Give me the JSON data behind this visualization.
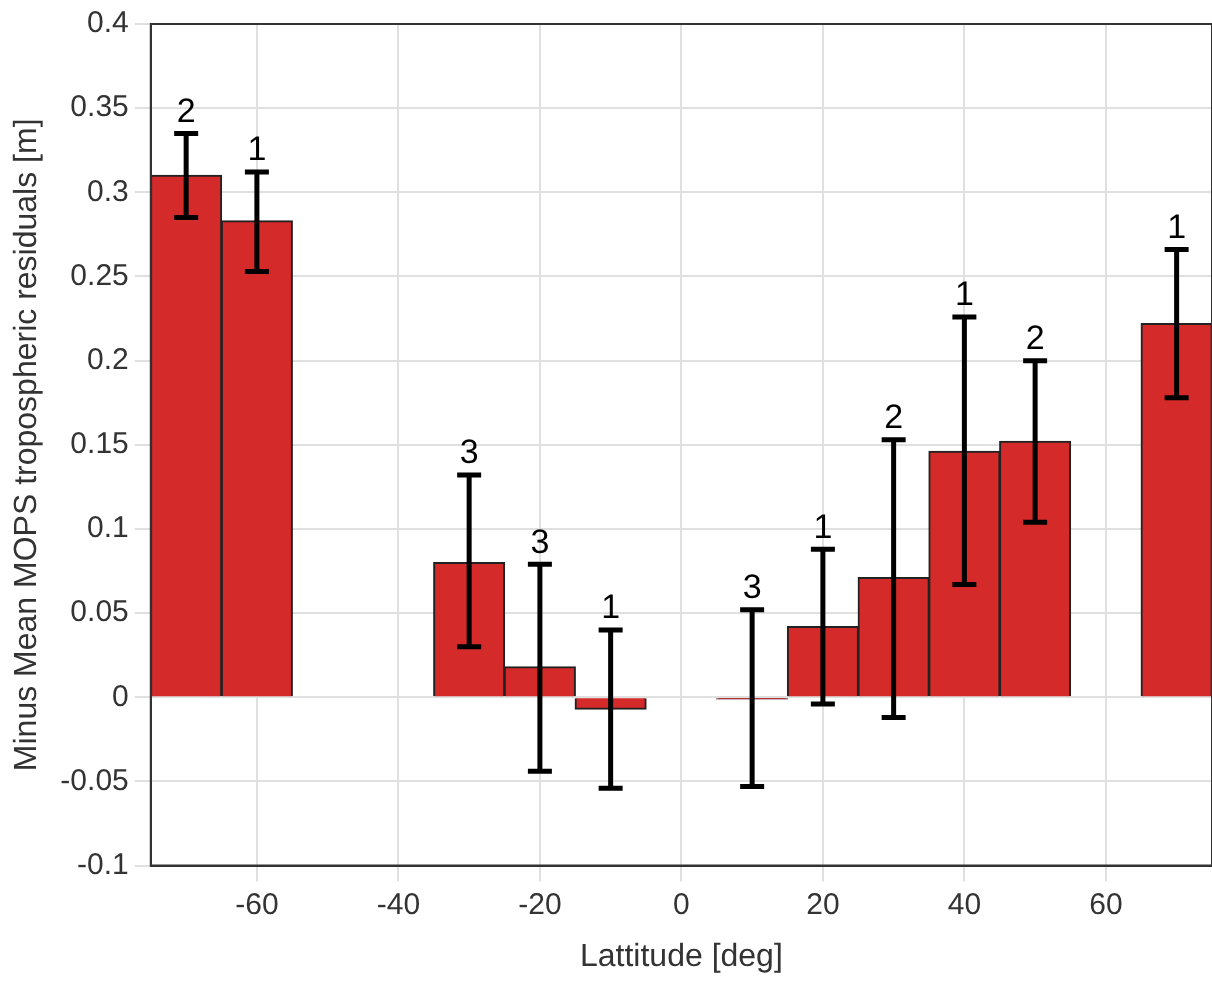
{
  "chart_data": {
    "type": "bar",
    "xlabel": "Lattitude [deg]",
    "ylabel": "Minus Mean MOPS tropospheric residuals [m]",
    "x": [
      -70,
      -60,
      -30,
      -20,
      -10,
      10,
      20,
      30,
      40,
      50,
      70
    ],
    "values": [
      0.31,
      0.283,
      0.08,
      0.018,
      -0.007,
      -0.001,
      0.042,
      0.071,
      0.146,
      0.152,
      0.222
    ],
    "errors": [
      [
        0.285,
        0.335
      ],
      [
        0.253,
        0.312
      ],
      [
        0.03,
        0.132
      ],
      [
        -0.044,
        0.079
      ],
      [
        -0.054,
        0.04
      ],
      [
        -0.053,
        0.052
      ],
      [
        -0.004,
        0.088
      ],
      [
        -0.012,
        0.153
      ],
      [
        0.067,
        0.226
      ],
      [
        0.104,
        0.2
      ],
      [
        0.178,
        0.266
      ]
    ],
    "color": "#d42a2a",
    "xlim": [
      -75,
      75
    ],
    "xticks": [
      -60,
      -40,
      -20,
      0,
      20,
      40,
      60
    ],
    "ylim": [
      -0.1,
      0.4
    ],
    "yticks": [
      -0.1,
      -0.05,
      0,
      0.05,
      0.1,
      0.15,
      0.2,
      0.25,
      0.3,
      0.35,
      0.4
    ],
    "grid": true,
    "annotations": [
      {
        "text": "2",
        "x": -70,
        "y": 0.335
      },
      {
        "text": "1",
        "x": -60,
        "y": 0.312
      },
      {
        "text": "3",
        "x": -30,
        "y": 0.132
      },
      {
        "text": "3",
        "x": -20,
        "y": 0.079
      },
      {
        "text": "1",
        "x": -10,
        "y": 0.04
      },
      {
        "text": "3",
        "x": 10,
        "y": 0.052
      },
      {
        "text": "1",
        "x": 20,
        "y": 0.088
      },
      {
        "text": "2",
        "x": 30,
        "y": 0.153
      },
      {
        "text": "1",
        "x": 40,
        "y": 0.226
      },
      {
        "text": "2",
        "x": 50,
        "y": 0.2
      },
      {
        "text": "1",
        "x": 70,
        "y": 0.266
      }
    ]
  }
}
